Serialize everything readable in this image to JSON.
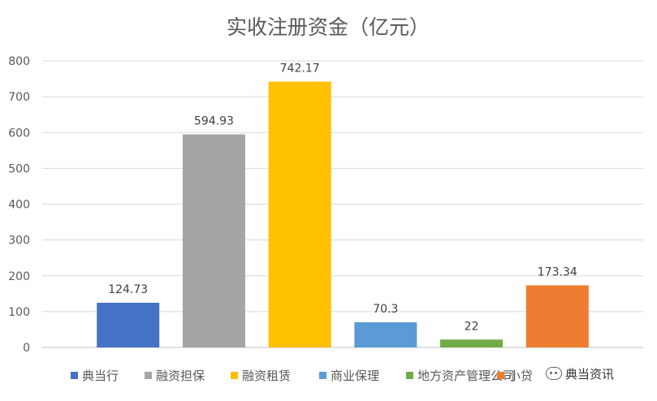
{
  "chart_data": {
    "type": "bar",
    "title": "实收注册资金（亿元）",
    "categories": [
      "典当行",
      "融资担保",
      "融资租赁",
      "商业保理",
      "地方资产管理公司",
      "小贷"
    ],
    "values": [
      124.73,
      594.93,
      742.17,
      70.3,
      22,
      173.34
    ],
    "value_labels": [
      "124.73",
      "594.93",
      "742.17",
      "70.3",
      "22",
      "173.34"
    ],
    "colors": [
      "#4472C4",
      "#A5A5A5",
      "#FFC000",
      "#5B9BD5",
      "#70AD47",
      "#ED7D31"
    ],
    "ylim": [
      0,
      800
    ],
    "yticks": [
      "0",
      "100",
      "200",
      "300",
      "400",
      "500",
      "600",
      "700",
      "800"
    ],
    "grid": true,
    "legend_position": "bottom",
    "xlabel": "",
    "ylabel": ""
  },
  "watermark": {
    "icon": "wechat-icon",
    "text": "典当资讯"
  }
}
